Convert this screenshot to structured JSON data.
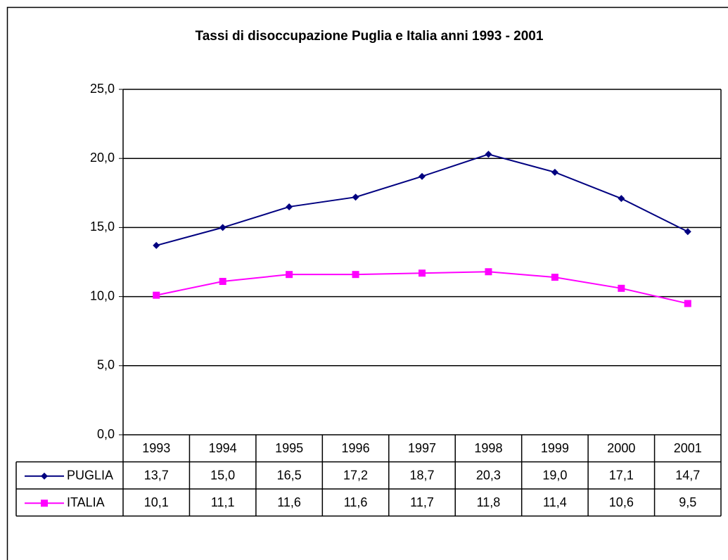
{
  "chart_data": {
    "type": "line",
    "title": "Tassi di disoccupazione Puglia e Italia anni 1993 - 2001",
    "categories": [
      "1993",
      "1994",
      "1995",
      "1996",
      "1997",
      "1998",
      "1999",
      "2000",
      "2001"
    ],
    "series": [
      {
        "name": "PUGLIA",
        "color": "#000080",
        "marker": "diamond",
        "values": [
          13.7,
          15.0,
          16.5,
          17.2,
          18.7,
          20.3,
          19.0,
          17.1,
          14.7
        ],
        "value_labels": [
          "13,7",
          "15,0",
          "16,5",
          "17,2",
          "18,7",
          "20,3",
          "19,0",
          "17,1",
          "14,7"
        ]
      },
      {
        "name": "ITALIA",
        "color": "#ff00ff",
        "marker": "square",
        "values": [
          10.1,
          11.1,
          11.6,
          11.6,
          11.7,
          11.8,
          11.4,
          10.6,
          9.5
        ],
        "value_labels": [
          "10,1",
          "11,1",
          "11,6",
          "11,6",
          "11,7",
          "11,8",
          "11,4",
          "10,6",
          "9,5"
        ]
      }
    ],
    "ylim": [
      0,
      25
    ],
    "yticks": [
      {
        "value": 0,
        "label": "0,0"
      },
      {
        "value": 5,
        "label": "5,0"
      },
      {
        "value": 10,
        "label": "10,0"
      },
      {
        "value": 15,
        "label": "15,0"
      },
      {
        "value": 20,
        "label": "20,0"
      },
      {
        "value": 25,
        "label": "25,0"
      }
    ],
    "grid": true
  }
}
